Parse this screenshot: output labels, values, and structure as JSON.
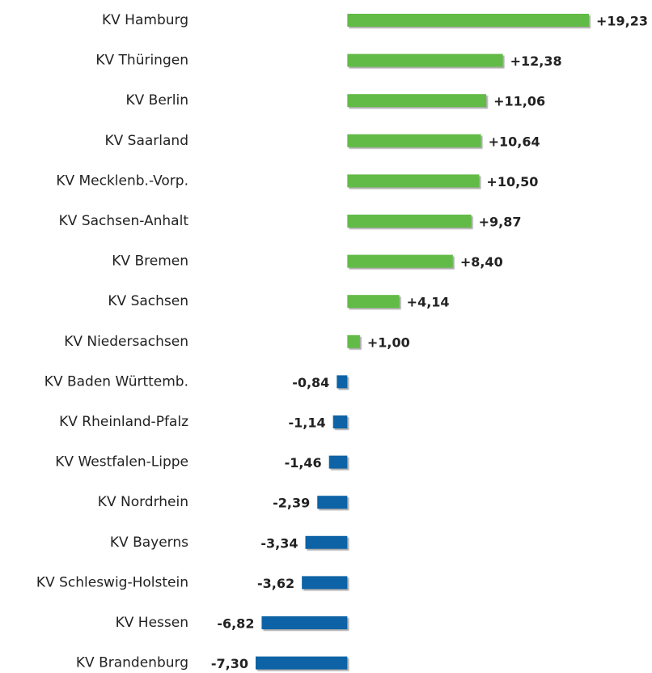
{
  "chart_data": {
    "type": "hbar",
    "categories": [
      "KV Hamburg",
      "KV Thüringen",
      "KV Berlin",
      "KV Saarland",
      "KV Mecklenb.-Vorp.",
      "KV Sachsen-Anhalt",
      "KV Bremen",
      "KV Sachsen",
      "KV Niedersachsen",
      "KV Baden Württemb.",
      "KV Rheinland-Pfalz",
      "KV Westfalen-Lippe",
      "KV Nordrhein",
      "KV Bayerns",
      "KV Schleswig-Holstein",
      "KV Hessen",
      "KV Brandenburg"
    ],
    "values": [
      19.23,
      12.38,
      11.06,
      10.64,
      10.5,
      9.87,
      8.4,
      4.14,
      1.0,
      -0.84,
      -1.14,
      -1.46,
      -2.39,
      -3.34,
      -3.62,
      -6.82,
      -7.3
    ],
    "value_labels": [
      "+19,23",
      "+12,38",
      "+11,06",
      "+10,64",
      "+10,50",
      "+9,87",
      "+8,40",
      "+4,14",
      "+1,00",
      "-0,84",
      "-1,14",
      "-1,46",
      "-2,39",
      "-3,34",
      "-3,62",
      "-6,82",
      "-7,30"
    ],
    "color_positive": "#62bb46",
    "color_negative": "#0b64a5"
  }
}
